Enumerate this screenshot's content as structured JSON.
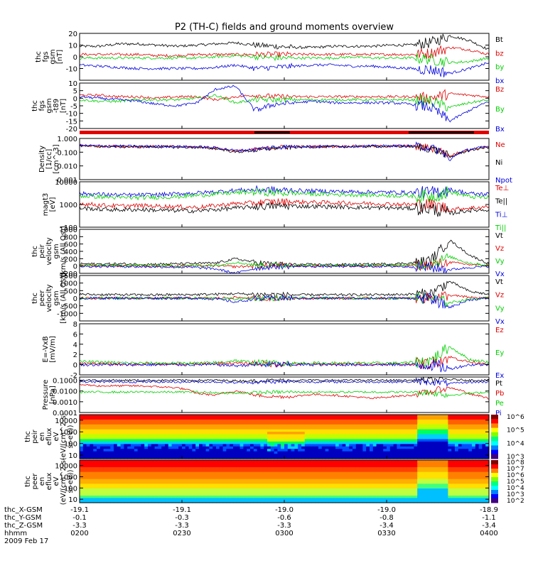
{
  "title": "P2 (TH-C) fields and ground moments overview",
  "colors": {
    "black": "#000000",
    "red": "#e00000",
    "green": "#00d000",
    "blue": "#0000e0"
  },
  "chart_data": [
    {
      "type": "line",
      "name": "fgs",
      "ylabel": [
        "thc",
        "fgs",
        "gsm",
        "[nT]"
      ],
      "ylim": [
        -20,
        20
      ],
      "yticks": [
        "20",
        "10",
        "0",
        "-10"
      ],
      "ytick_vals": [
        20,
        10,
        0,
        -10
      ],
      "series": [
        {
          "name": "Bt",
          "color": "black",
          "base": [
            9,
            9,
            11,
            11,
            10,
            9,
            10,
            11,
            12,
            10,
            9,
            8,
            8,
            9,
            9,
            9,
            10,
            10,
            12,
            18,
            14,
            6
          ]
        },
        {
          "name": "bz",
          "color": "red",
          "base": [
            2,
            2,
            2,
            2,
            1,
            1,
            2,
            2,
            2,
            2,
            2,
            2,
            2,
            2,
            2,
            2,
            2,
            2,
            3,
            8,
            6,
            2
          ]
        },
        {
          "name": "by",
          "color": "green",
          "base": [
            -1,
            -1,
            -1,
            -1,
            -1,
            -1,
            -1,
            0,
            1,
            0,
            -1,
            -1,
            -1,
            -1,
            0,
            -1,
            -1,
            -1,
            -2,
            -5,
            -4,
            -1
          ]
        },
        {
          "name": "bx",
          "color": "blue",
          "base": [
            -7,
            -8,
            -9,
            -10,
            -10,
            -10,
            -10,
            -9,
            -7,
            -10,
            -9,
            -8,
            -7,
            -7,
            -8,
            -8,
            -9,
            -10,
            -11,
            -14,
            -10,
            -5
          ]
        }
      ]
    },
    {
      "type": "line",
      "name": "fgs_dsl",
      "ylabel": [
        "thc",
        "fgs",
        "gsm",
        "-t89",
        "[nT]"
      ],
      "ylim": [
        -20,
        10
      ],
      "yticks": [
        "10",
        "5",
        "0",
        "-5",
        "-10",
        "-15",
        "-20"
      ],
      "ytick_vals": [
        10,
        5,
        0,
        -5,
        -10,
        -15,
        -20
      ],
      "series": [
        {
          "name": "Bz",
          "color": "red",
          "base": [
            2,
            2,
            1,
            1,
            0,
            1,
            1,
            -1,
            1,
            2,
            1,
            1,
            1,
            1,
            1,
            1,
            1,
            1,
            0,
            3,
            2,
            1
          ]
        },
        {
          "name": "By",
          "color": "green",
          "base": [
            -1,
            -2,
            -2,
            -1,
            -1,
            -1,
            0,
            2,
            -3,
            -1,
            -1,
            -1,
            -1,
            -1,
            -1,
            -1,
            -1,
            -1,
            -2,
            -6,
            -3,
            -1
          ]
        },
        {
          "name": "Bx",
          "color": "blue",
          "base": [
            1,
            0,
            -1,
            -2,
            -4,
            -5,
            -3,
            6,
            8,
            -8,
            -4,
            -3,
            -2,
            -3,
            -3,
            -3,
            -3,
            -4,
            -6,
            -15,
            -8,
            -2
          ]
        }
      ]
    },
    {
      "type": "line",
      "name": "density",
      "ylabel": [
        "Density",
        "[1/cc]",
        "[cm^-3]"
      ],
      "scale": "log",
      "ylim": [
        0.001,
        1
      ],
      "yticks": [
        "1.000",
        "0.100",
        "0.010",
        "0.001"
      ],
      "ytick_vals": [
        1,
        0.1,
        0.01,
        0.001
      ],
      "series": [
        {
          "name": "Ne",
          "color": "red",
          "base": [
            0.3,
            0.28,
            0.27,
            0.26,
            0.26,
            0.25,
            0.24,
            0.2,
            0.12,
            0.15,
            0.22,
            0.25,
            0.26,
            0.26,
            0.27,
            0.27,
            0.28,
            0.28,
            0.2,
            0.05,
            0.15,
            0.25
          ]
        },
        {
          "name": "Ni",
          "color": "black",
          "base": [
            0.28,
            0.26,
            0.25,
            0.24,
            0.24,
            0.23,
            0.22,
            0.18,
            0.1,
            0.13,
            0.2,
            0.23,
            0.24,
            0.25,
            0.25,
            0.26,
            0.26,
            0.26,
            0.18,
            0.04,
            0.13,
            0.23
          ]
        },
        {
          "name": "Npot",
          "color": "blue",
          "base": [
            0.31,
            0.29,
            0.28,
            0.27,
            0.27,
            0.26,
            0.25,
            0.21,
            0.13,
            0.16,
            0.23,
            0.26,
            0.27,
            0.27,
            0.28,
            0.28,
            0.29,
            0.29,
            0.21,
            0.02,
            0.16,
            0.26
          ]
        }
      ]
    },
    {
      "type": "line",
      "name": "temperature",
      "ylabel": [
        "magt3",
        "[eV]"
      ],
      "scale": "log",
      "ylim": [
        100,
        10000
      ],
      "yticks": [
        "10000",
        "1000",
        "100"
      ],
      "ytick_vals": [
        10000,
        1000,
        100
      ],
      "series": [
        {
          "name": "Te⊥",
          "color": "red",
          "base": [
            1100,
            950,
            850,
            900,
            850,
            800,
            750,
            900,
            1100,
            1200,
            1300,
            1300,
            1250,
            1200,
            1150,
            1100,
            1050,
            1000,
            950,
            600,
            700,
            800
          ]
        },
        {
          "name": "Te||",
          "color": "black",
          "base": [
            700,
            620,
            580,
            600,
            560,
            540,
            520,
            600,
            700,
            800,
            850,
            850,
            820,
            800,
            760,
            730,
            700,
            680,
            650,
            400,
            550,
            600
          ]
        },
        {
          "name": "Ti⊥",
          "color": "blue",
          "base": [
            3000,
            2800,
            2600,
            2600,
            2700,
            2900,
            3200,
            3600,
            4200,
            4500,
            4300,
            4100,
            3900,
            3800,
            3600,
            3500,
            3400,
            3300,
            3200,
            4500,
            3000,
            2800
          ]
        },
        {
          "name": "Ti||",
          "color": "green",
          "base": [
            2400,
            2200,
            2000,
            2000,
            2100,
            2200,
            2500,
            2900,
            3300,
            3500,
            3300,
            3100,
            2900,
            2800,
            2700,
            2600,
            2500,
            2400,
            2300,
            3500,
            2200,
            2000
          ]
        }
      ]
    },
    {
      "type": "line",
      "name": "ion_velocity",
      "ylabel": [
        "thc",
        "peir",
        "velocity",
        "gsm",
        "[km/s (All Qs)]"
      ],
      "ylim": [
        -200,
        1000
      ],
      "yticks": [
        "1000",
        "800",
        "600",
        "400",
        "200",
        "0",
        "-200"
      ],
      "ytick_vals": [
        1000,
        800,
        600,
        400,
        200,
        0,
        -200
      ],
      "series": [
        {
          "name": "Vt",
          "color": "black",
          "base": [
            60,
            55,
            60,
            50,
            50,
            60,
            70,
            80,
            200,
            100,
            50,
            40,
            40,
            40,
            40,
            50,
            60,
            80,
            150,
            700,
            300,
            60
          ]
        },
        {
          "name": "Vz",
          "color": "red",
          "base": [
            10,
            10,
            5,
            5,
            0,
            0,
            5,
            10,
            -20,
            0,
            5,
            5,
            5,
            5,
            5,
            5,
            5,
            10,
            30,
            100,
            40,
            10
          ]
        },
        {
          "name": "Vy",
          "color": "green",
          "base": [
            20,
            20,
            20,
            20,
            15,
            10,
            10,
            20,
            100,
            30,
            20,
            20,
            20,
            20,
            20,
            20,
            25,
            30,
            60,
            250,
            80,
            20
          ]
        },
        {
          "name": "Vx",
          "color": "blue",
          "base": [
            -10,
            -10,
            -10,
            -20,
            -20,
            -30,
            -40,
            -80,
            -200,
            -60,
            -20,
            -10,
            -10,
            -10,
            -10,
            -10,
            -10,
            -20,
            -40,
            -100,
            -40,
            -10
          ]
        }
      ]
    },
    {
      "type": "line",
      "name": "electron_velocity",
      "ylabel": [
        "thc",
        "peer",
        "velocity",
        "gsm",
        "[km/s (All Qs)]"
      ],
      "ylim": [
        -1500,
        1500
      ],
      "yticks": [
        "1500",
        "1000",
        "500",
        "0",
        "-500",
        "-1000"
      ],
      "ytick_vals": [
        1500,
        1000,
        500,
        0,
        -500,
        -1000
      ],
      "series": [
        {
          "name": "Vt",
          "color": "black",
          "base": [
            250,
            240,
            230,
            220,
            220,
            230,
            240,
            260,
            300,
            250,
            230,
            220,
            220,
            220,
            220,
            230,
            240,
            260,
            300,
            1100,
            450,
            250
          ]
        },
        {
          "name": "Vz",
          "color": "red",
          "base": [
            0,
            0,
            0,
            0,
            0,
            0,
            0,
            0,
            50,
            0,
            0,
            0,
            0,
            0,
            0,
            0,
            0,
            0,
            20,
            200,
            50,
            0
          ]
        },
        {
          "name": "Vy",
          "color": "green",
          "base": [
            0,
            0,
            0,
            0,
            0,
            0,
            0,
            0,
            -50,
            0,
            0,
            0,
            0,
            0,
            0,
            0,
            0,
            0,
            0,
            -300,
            -50,
            0
          ]
        },
        {
          "name": "Vx",
          "color": "blue",
          "base": [
            0,
            0,
            0,
            0,
            0,
            0,
            0,
            -50,
            -250,
            -50,
            0,
            0,
            0,
            0,
            0,
            0,
            0,
            0,
            -30,
            -600,
            -100,
            0
          ]
        }
      ]
    },
    {
      "type": "line",
      "name": "efield",
      "ylabel": [
        "E=-VxB",
        "[mV/m]"
      ],
      "ylim": [
        -2,
        8
      ],
      "yticks": [
        "8",
        "6",
        "4",
        "2",
        "0",
        "-2"
      ],
      "ytick_vals": [
        8,
        6,
        4,
        2,
        0,
        -2
      ],
      "series": [
        {
          "name": "Ez",
          "color": "red",
          "base": [
            0.2,
            0.2,
            0.1,
            0.1,
            0.1,
            0.1,
            0.1,
            0.2,
            0.3,
            0.2,
            0.1,
            0.1,
            0.1,
            0.1,
            0.1,
            0.1,
            0.1,
            0.1,
            0.3,
            1.5,
            0.5,
            0.2
          ]
        },
        {
          "name": "Ey",
          "color": "green",
          "base": [
            0.6,
            0.5,
            0.4,
            0.3,
            0.3,
            0.3,
            0.3,
            0.4,
            0.8,
            0.4,
            0.3,
            0.3,
            0.3,
            0.3,
            0.3,
            0.3,
            0.3,
            0.4,
            0.8,
            3.5,
            1.0,
            0.5
          ]
        },
        {
          "name": "Ex",
          "color": "blue",
          "base": [
            0,
            0,
            0,
            0,
            0,
            0,
            0,
            0,
            -0.2,
            0,
            0,
            0,
            0,
            0,
            0,
            0,
            0,
            0,
            0,
            -0.8,
            0,
            0
          ]
        }
      ]
    },
    {
      "type": "line",
      "name": "pressure",
      "ylabel": [
        "Pressure",
        "[nPa]"
      ],
      "scale": "log",
      "ylim": [
        0.0001,
        0.2
      ],
      "yticks": [
        "0.1000",
        "0.0100",
        "0.0010",
        "0.0001"
      ],
      "ytick_vals": [
        0.1,
        0.01,
        0.001,
        0.0001
      ],
      "series": [
        {
          "name": "Pt",
          "color": "black",
          "base": [
            0.1,
            0.1,
            0.1,
            0.1,
            0.1,
            0.1,
            0.1,
            0.1,
            0.09,
            0.09,
            0.1,
            0.1,
            0.1,
            0.1,
            0.1,
            0.1,
            0.1,
            0.1,
            0.1,
            0.12,
            0.1,
            0.1
          ]
        },
        {
          "name": "Pb",
          "color": "red",
          "base": [
            0.04,
            0.03,
            0.03,
            0.03,
            0.025,
            0.02,
            0.006,
            0.004,
            0.01,
            0.004,
            0.003,
            0.003,
            0.005,
            0.004,
            0.003,
            0.002,
            0.003,
            0.004,
            0.008,
            0.02,
            0.005,
            0.002
          ]
        },
        {
          "name": "Pe",
          "color": "green",
          "base": [
            0.008,
            0.008,
            0.008,
            0.008,
            0.008,
            0.008,
            0.008,
            0.007,
            0.006,
            0.007,
            0.008,
            0.008,
            0.008,
            0.008,
            0.008,
            0.008,
            0.008,
            0.008,
            0.007,
            0.004,
            0.006,
            0.008
          ]
        },
        {
          "name": "Pi",
          "color": "blue",
          "base": [
            0.07,
            0.07,
            0.07,
            0.07,
            0.07,
            0.07,
            0.07,
            0.07,
            0.06,
            0.065,
            0.07,
            0.07,
            0.07,
            0.07,
            0.07,
            0.07,
            0.07,
            0.07,
            0.07,
            0.05,
            0.065,
            0.07
          ]
        }
      ]
    },
    {
      "type": "heatmap",
      "name": "ion_spectrogram",
      "ylabel": [
        "thc",
        "peir",
        "en",
        "eflux",
        "eV",
        "(eV/(cm^2-s-",
        "sr-eV))"
      ],
      "scale": "log",
      "ylim": [
        5,
        30000
      ],
      "yticks": [
        "10000",
        "1000",
        "100",
        "10"
      ],
      "ytick_vals": [
        10000,
        1000,
        100,
        10
      ],
      "colorbar": {
        "ticks": [
          "10^6",
          "10^5",
          "10^4",
          "10^3"
        ]
      }
    },
    {
      "type": "heatmap",
      "name": "electron_spectrogram",
      "ylabel": [
        "thc",
        "peer",
        "en",
        "eflux",
        "eV",
        "(eV/(cm^2-s-",
        "sr-eV))"
      ],
      "scale": "log",
      "ylim": [
        5,
        30000
      ],
      "yticks": [
        "10000",
        "1000",
        "100",
        "10"
      ],
      "ytick_vals": [
        10000,
        1000,
        100,
        10
      ],
      "colorbar": {
        "ticks": [
          "10^8",
          "10^7",
          "10^6",
          "10^5",
          "10^4",
          "10^3",
          "10^2"
        ]
      }
    }
  ],
  "xaxis": {
    "row_labels": [
      "thc_X-GSM",
      "thc_Y-GSM",
      "thc_Z-GSM",
      "hhmm",
      "2009 Feb 17"
    ],
    "ticks": [
      {
        "x": "-19.1",
        "y": "-0.1",
        "z": "-3.3",
        "time": "0200"
      },
      {
        "x": "-19.1",
        "y": "-0.3",
        "z": "-3.3",
        "time": "0230"
      },
      {
        "x": "-19.0",
        "y": "-0.6",
        "z": "-3.3",
        "time": "0300"
      },
      {
        "x": "-19.0",
        "y": "-0.8",
        "z": "-3.4",
        "time": "0330"
      },
      {
        "x": "-18.9",
        "y": "-1.1",
        "z": "-3.4",
        "time": "0400"
      }
    ]
  }
}
